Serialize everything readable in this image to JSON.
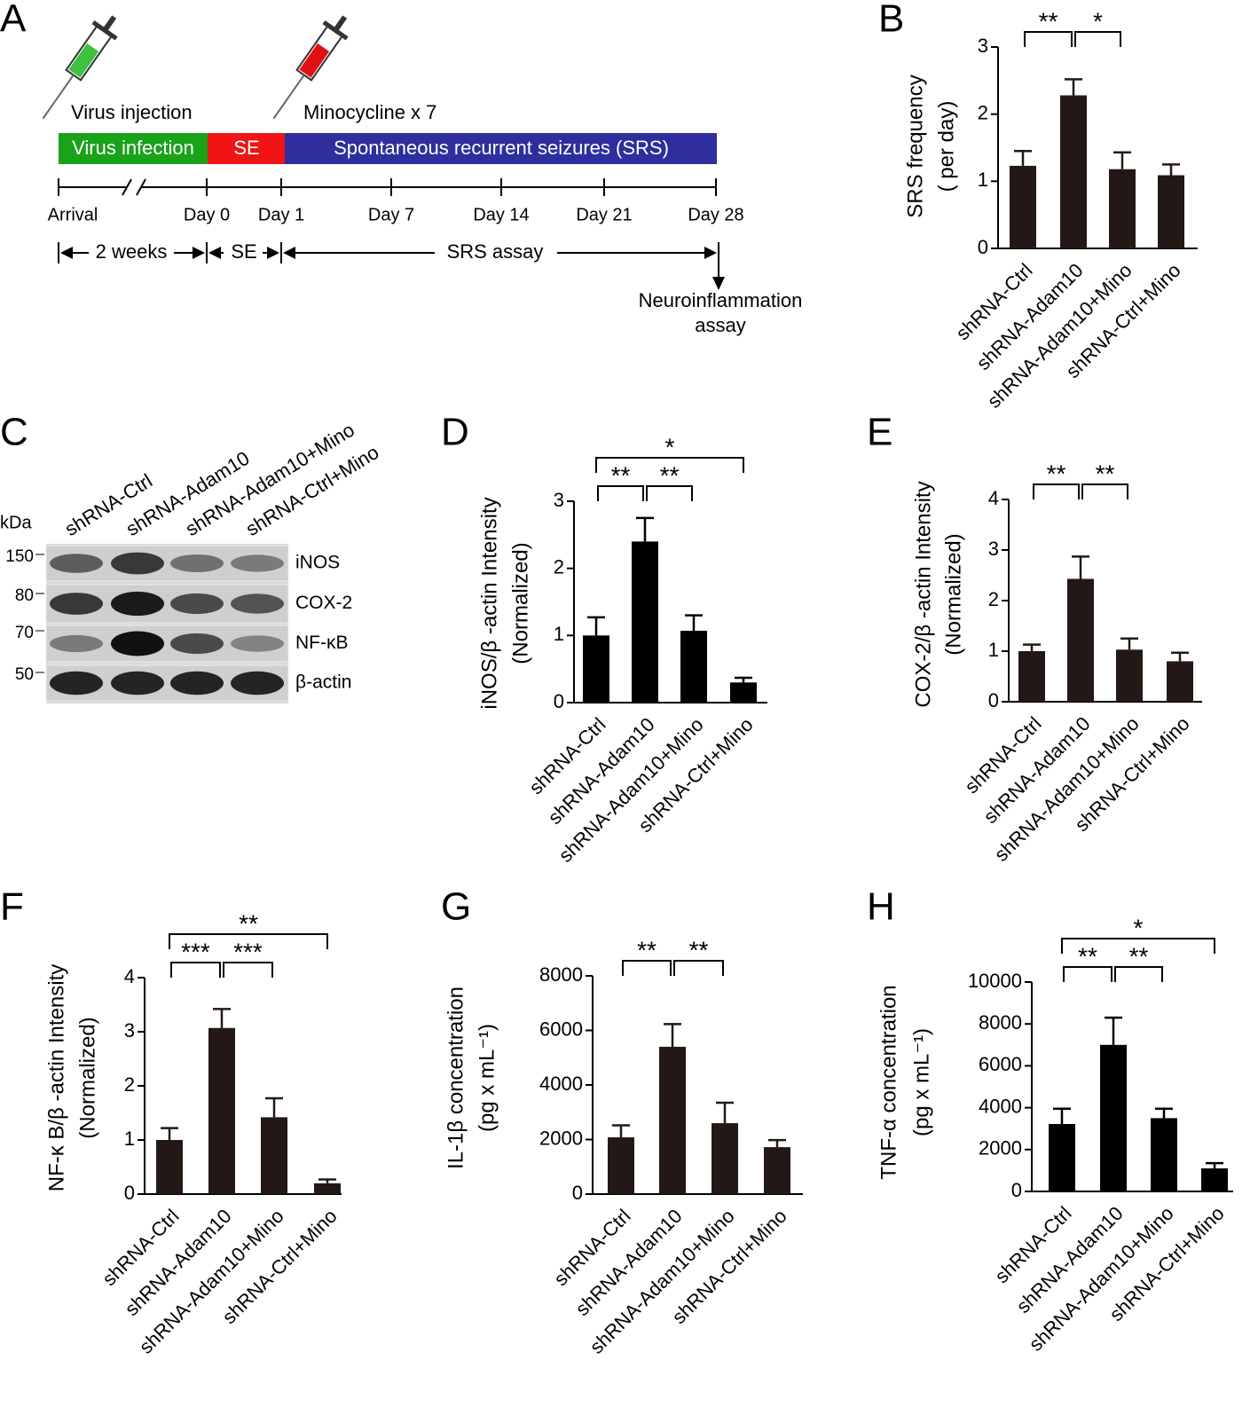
{
  "panel_labels": [
    "A",
    "B",
    "C",
    "D",
    "E",
    "F",
    "G",
    "H"
  ],
  "timeline": {
    "injections": [
      "Virus injection",
      "Minocycline x 7"
    ],
    "phases": [
      "Virus infection",
      "SE",
      "Spontaneous recurrent seizures (SRS)"
    ],
    "axis_labels": [
      "Arrival",
      "Day 0",
      "Day 1",
      "Day 7",
      "Day 14",
      "Day 21",
      "Day 28"
    ],
    "periods": [
      "2 weeks",
      "SE",
      "SRS assay"
    ],
    "endpoint": [
      "Neuroinflammation",
      "assay"
    ]
  },
  "blot": {
    "unit": "kDa",
    "lanes": [
      "shRNA-Ctrl",
      "shRNA-Adam10",
      "shRNA-Adam10+Mino",
      "shRNA-Ctrl+Mino"
    ],
    "markers": [
      "150",
      "80",
      "70",
      "50"
    ],
    "bands": [
      "iNOS",
      "COX-2",
      "NF-κB",
      "β-actin"
    ]
  },
  "chart_data": [
    {
      "type": "bar",
      "ylabel": [
        "SRS frequency",
        "( per day)"
      ],
      "categories": [
        "shRNA-Ctrl",
        "shRNA-Adam10",
        "shRNA-Adam10+Mino",
        "shRNA-Ctrl+Mino"
      ],
      "values": [
        1.23,
        2.28,
        1.18,
        1.09
      ],
      "errors": [
        0.22,
        0.24,
        0.25,
        0.16
      ],
      "color": "#231815",
      "ylim": [
        0,
        3
      ],
      "yticks": [
        0,
        1,
        2,
        3
      ],
      "significance": [
        {
          "from": 0,
          "to": 1,
          "label": "**"
        },
        {
          "from": 1,
          "to": 2,
          "label": "*"
        }
      ]
    },
    {
      "type": "bar",
      "ylabel": [
        "iNOS/β -actin Intensity",
        "(Normalized)"
      ],
      "categories": [
        "shRNA-Ctrl",
        "shRNA-Adam10",
        "shRNA-Adam10+Mino",
        "shRNA-Ctrl+Mino"
      ],
      "values": [
        1.0,
        2.4,
        1.07,
        0.3
      ],
      "errors": [
        0.27,
        0.35,
        0.23,
        0.07
      ],
      "color": "#000000",
      "ylim": [
        0,
        3
      ],
      "yticks": [
        0,
        1,
        2,
        3
      ],
      "significance": [
        {
          "from": 0,
          "to": 1,
          "label": "**"
        },
        {
          "from": 1,
          "to": 2,
          "label": "**"
        },
        {
          "from": 0,
          "to": 3,
          "label": "*"
        }
      ]
    },
    {
      "type": "bar",
      "ylabel": [
        "COX-2/β -actin Intensity",
        "(Normalized)"
      ],
      "categories": [
        "shRNA-Ctrl",
        "shRNA-Adam10",
        "shRNA-Adam10+Mino",
        "shRNA-Ctrl+Mino"
      ],
      "values": [
        1.0,
        2.43,
        1.03,
        0.8
      ],
      "errors": [
        0.13,
        0.44,
        0.22,
        0.17
      ],
      "color": "#231815",
      "ylim": [
        0,
        4
      ],
      "yticks": [
        0,
        1,
        2,
        3,
        4
      ],
      "significance": [
        {
          "from": 0,
          "to": 1,
          "label": "**"
        },
        {
          "from": 1,
          "to": 2,
          "label": "**"
        }
      ]
    },
    {
      "type": "bar",
      "ylabel": [
        "NF-κ B/β -actin Intensity",
        "(Normalized)"
      ],
      "categories": [
        "shRNA-Ctrl",
        "shRNA-Adam10",
        "shRNA-Adam10+Mino",
        "shRNA-Ctrl+Mino"
      ],
      "values": [
        1.0,
        3.07,
        1.42,
        0.2
      ],
      "errors": [
        0.22,
        0.35,
        0.35,
        0.07
      ],
      "color": "#231815",
      "ylim": [
        0,
        4
      ],
      "yticks": [
        0,
        1,
        2,
        3,
        4
      ],
      "significance": [
        {
          "from": 0,
          "to": 1,
          "label": "***"
        },
        {
          "from": 1,
          "to": 2,
          "label": "***"
        },
        {
          "from": 0,
          "to": 3,
          "label": "**"
        }
      ]
    },
    {
      "type": "bar",
      "ylabel": [
        "IL-1β  concentration",
        "(pg x mL⁻¹)"
      ],
      "categories": [
        "shRNA-Ctrl",
        "shRNA-Adam10",
        "shRNA-Adam10+Mino",
        "shRNA-Ctrl+Mino"
      ],
      "values": [
        2080,
        5400,
        2600,
        1720
      ],
      "errors": [
        440,
        830,
        750,
        260
      ],
      "color": "#231815",
      "ylim": [
        0,
        8000
      ],
      "yticks": [
        0,
        2000,
        4000,
        6000,
        8000
      ],
      "significance": [
        {
          "from": 0,
          "to": 1,
          "label": "**"
        },
        {
          "from": 1,
          "to": 2,
          "label": "**"
        }
      ]
    },
    {
      "type": "bar",
      "ylabel": [
        "TNF-α  concentration",
        "(pg x mL⁻¹)"
      ],
      "categories": [
        "shRNA-Ctrl",
        "shRNA-Adam10",
        "shRNA-Adam10+Mino",
        "shRNA-Ctrl+Mino"
      ],
      "values": [
        3220,
        7000,
        3500,
        1100
      ],
      "errors": [
        730,
        1300,
        450,
        250
      ],
      "color": "#000000",
      "ylim": [
        0,
        10000
      ],
      "yticks": [
        0,
        2000,
        4000,
        6000,
        8000,
        10000
      ],
      "significance": [
        {
          "from": 0,
          "to": 1,
          "label": "**"
        },
        {
          "from": 1,
          "to": 2,
          "label": "**"
        },
        {
          "from": 0,
          "to": 3,
          "label": "*"
        }
      ]
    }
  ]
}
